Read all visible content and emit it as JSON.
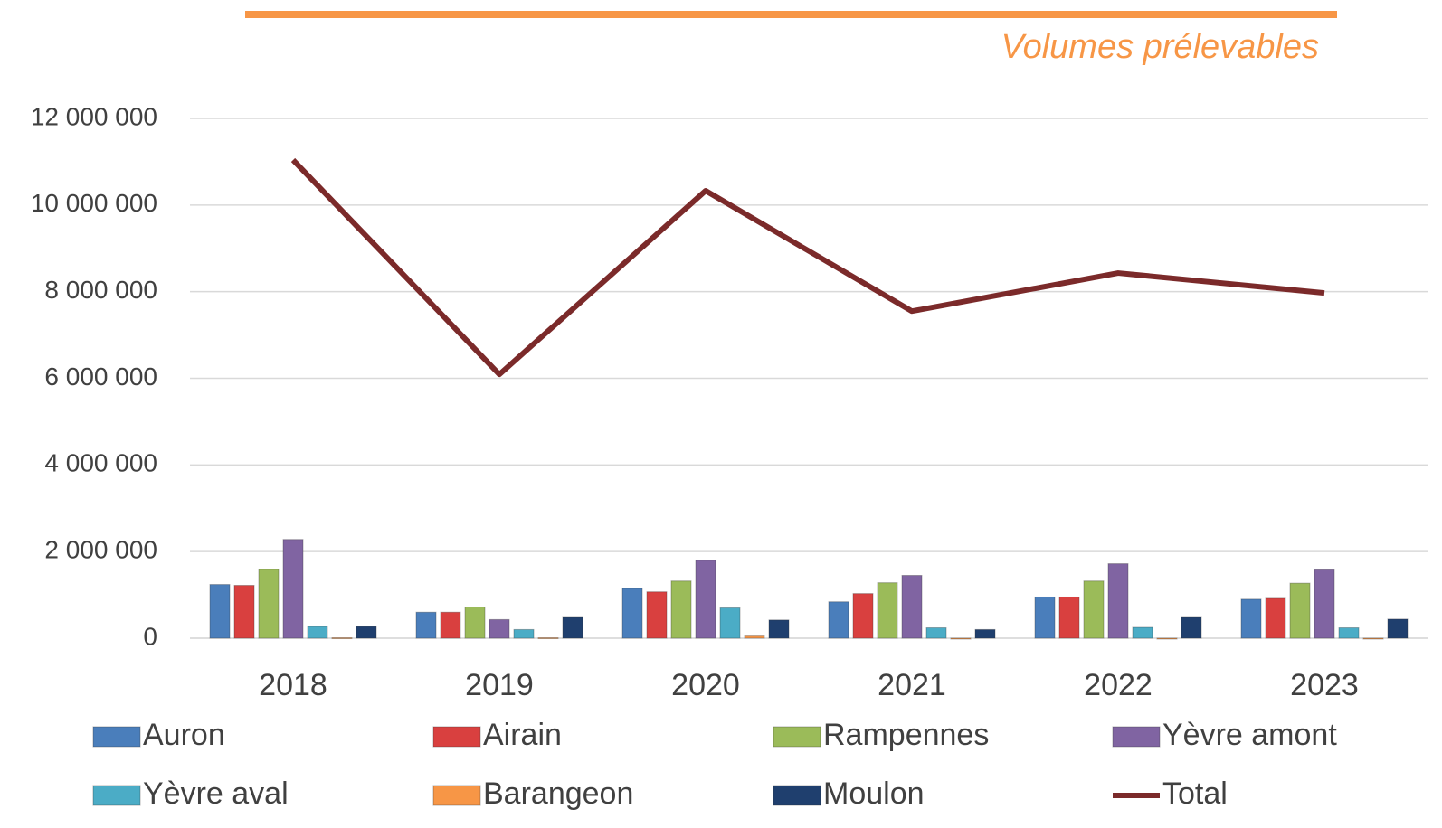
{
  "chart_data": {
    "type": "bar",
    "title": "Volumes prélevables",
    "categories": [
      "2018",
      "2019",
      "2020",
      "2021",
      "2022",
      "2023"
    ],
    "series": [
      {
        "name": "Auron",
        "color": "#4a7ebb",
        "values": [
          1240000,
          600000,
          1150000,
          840000,
          950000,
          900000
        ]
      },
      {
        "name": "Airain",
        "color": "#d9403f",
        "values": [
          1220000,
          600000,
          1070000,
          1030000,
          950000,
          920000
        ]
      },
      {
        "name": "Rampennes",
        "color": "#9bbb59",
        "values": [
          1590000,
          720000,
          1320000,
          1280000,
          1320000,
          1270000
        ]
      },
      {
        "name": "Yèvre amont",
        "color": "#8064a2",
        "values": [
          2280000,
          430000,
          1800000,
          1450000,
          1720000,
          1580000
        ]
      },
      {
        "name": "Yèvre aval",
        "color": "#4bacc6",
        "values": [
          270000,
          200000,
          700000,
          240000,
          250000,
          240000
        ]
      },
      {
        "name": "Barangeon",
        "color": "#f79646",
        "values": [
          10000,
          10000,
          50000,
          0,
          0,
          0
        ]
      },
      {
        "name": "Moulon",
        "color": "#1f3f6e",
        "values": [
          270000,
          480000,
          420000,
          200000,
          480000,
          440000
        ]
      },
      {
        "name": "Total",
        "color": "#7b2a2a",
        "type": "line",
        "values": [
          11040000,
          6090000,
          10330000,
          7550000,
          8430000,
          7970000
        ]
      }
    ],
    "ylim": [
      0,
      12000000
    ],
    "yticks": [
      0,
      {
        "value": 2000000,
        "label": "2 000 000"
      },
      {
        "value": 4000000,
        "label": "4 000 000"
      },
      {
        "value": 6000000,
        "label": "6 000 000"
      },
      {
        "value": 8000000,
        "label": "8 000 000"
      },
      {
        "value": 10000000,
        "label": "10 000 000"
      },
      {
        "value": 12000000,
        "label": "12 000 000"
      }
    ],
    "grid": true,
    "legend": "bottom"
  }
}
